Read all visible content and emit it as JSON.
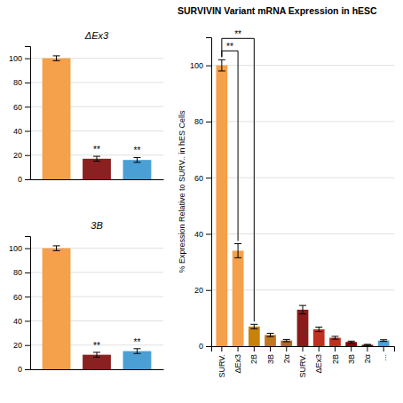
{
  "chart_data": [
    {
      "type": "bar",
      "title": "SURVIVIN Variant mRNA Expression in hESC",
      "ylabel": "% Expression Relative to SURV.. in hES Cells",
      "categories": [
        "SURV.",
        "ΔEx3",
        "2B",
        "3B",
        "2α",
        "SURV.",
        "ΔEx3",
        "2B",
        "3B",
        "2α",
        "..."
      ],
      "values": [
        100,
        34,
        7,
        4,
        2,
        13,
        6,
        3,
        1.5,
        0.5,
        2
      ],
      "errors": [
        2,
        2.5,
        0.8,
        0.6,
        0.4,
        1.5,
        0.8,
        0.5,
        0.3,
        0.15,
        0.3
      ],
      "colors": [
        "#F5A04A",
        "#F5A04A",
        "#C8820A",
        "#C07820",
        "#B06828",
        "#8B1A1A",
        "#C03020",
        "#C03020",
        "#8B0000",
        "#7B0000",
        "#4A9FD4"
      ],
      "ylim": [
        0,
        110
      ],
      "yticks": [
        0,
        20,
        40,
        60,
        80,
        100
      ],
      "grid": true,
      "annotations": [
        "**",
        "**"
      ]
    },
    {
      "type": "bar",
      "title": "ΔEx3",
      "values": [
        100,
        17,
        16
      ],
      "errors": [
        2,
        2,
        2
      ],
      "colors": [
        "#F5A04A",
        "#8B2020",
        "#4A9FD4"
      ],
      "ylim": [
        0,
        110
      ],
      "yticks": [
        0,
        20,
        40,
        60,
        80,
        100
      ],
      "grid": true,
      "tick_labels": "y",
      "annotations": [
        "**",
        "**"
      ]
    },
    {
      "type": "bar",
      "title": "3B",
      "values": [
        100,
        12,
        15
      ],
      "errors": [
        2,
        2,
        2
      ],
      "colors": [
        "#F5A04A",
        "#8B2020",
        "#4A9FD4"
      ],
      "ylim": [
        0,
        110
      ],
      "yticks": [
        0,
        20,
        40,
        60,
        80,
        100
      ],
      "grid": true,
      "tick_labels": "y",
      "annotations": [
        "**",
        "**"
      ]
    }
  ]
}
